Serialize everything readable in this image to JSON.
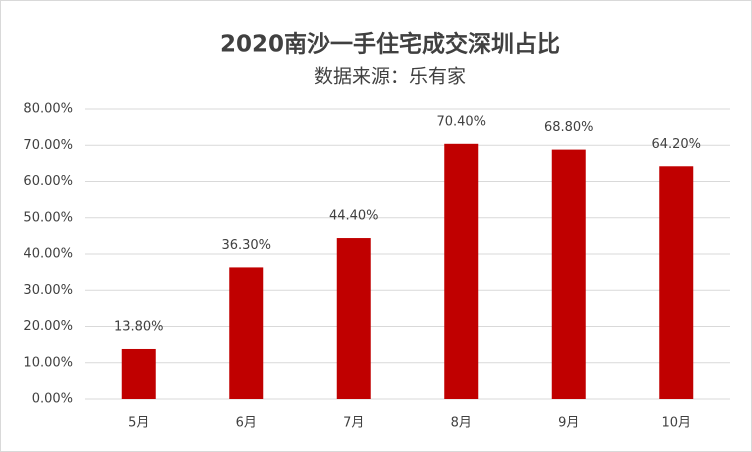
{
  "chart_data": {
    "type": "bar",
    "title": "2020南沙一手住宅成交深圳占比",
    "subtitle": "数据来源：乐有家",
    "categories": [
      "5月",
      "6月",
      "7月",
      "8月",
      "9月",
      "10月"
    ],
    "values": [
      13.8,
      36.3,
      44.4,
      70.4,
      68.8,
      64.2
    ],
    "value_labels": [
      "13.80%",
      "36.30%",
      "44.40%",
      "70.40%",
      "68.80%",
      "64.20%"
    ],
    "color": "#c00000",
    "ylim": [
      0,
      80
    ],
    "yticks": [
      {
        "value": 0,
        "label": "0.00%"
      },
      {
        "value": 10,
        "label": "10.00%"
      },
      {
        "value": 20,
        "label": "20.00%"
      },
      {
        "value": 30,
        "label": "30.00%"
      },
      {
        "value": 40,
        "label": "40.00%"
      },
      {
        "value": 50,
        "label": "50.00%"
      },
      {
        "value": 60,
        "label": "60.00%"
      },
      {
        "value": 70,
        "label": "70.00%"
      },
      {
        "value": 80,
        "label": "80.00%"
      }
    ],
    "grid": true
  }
}
